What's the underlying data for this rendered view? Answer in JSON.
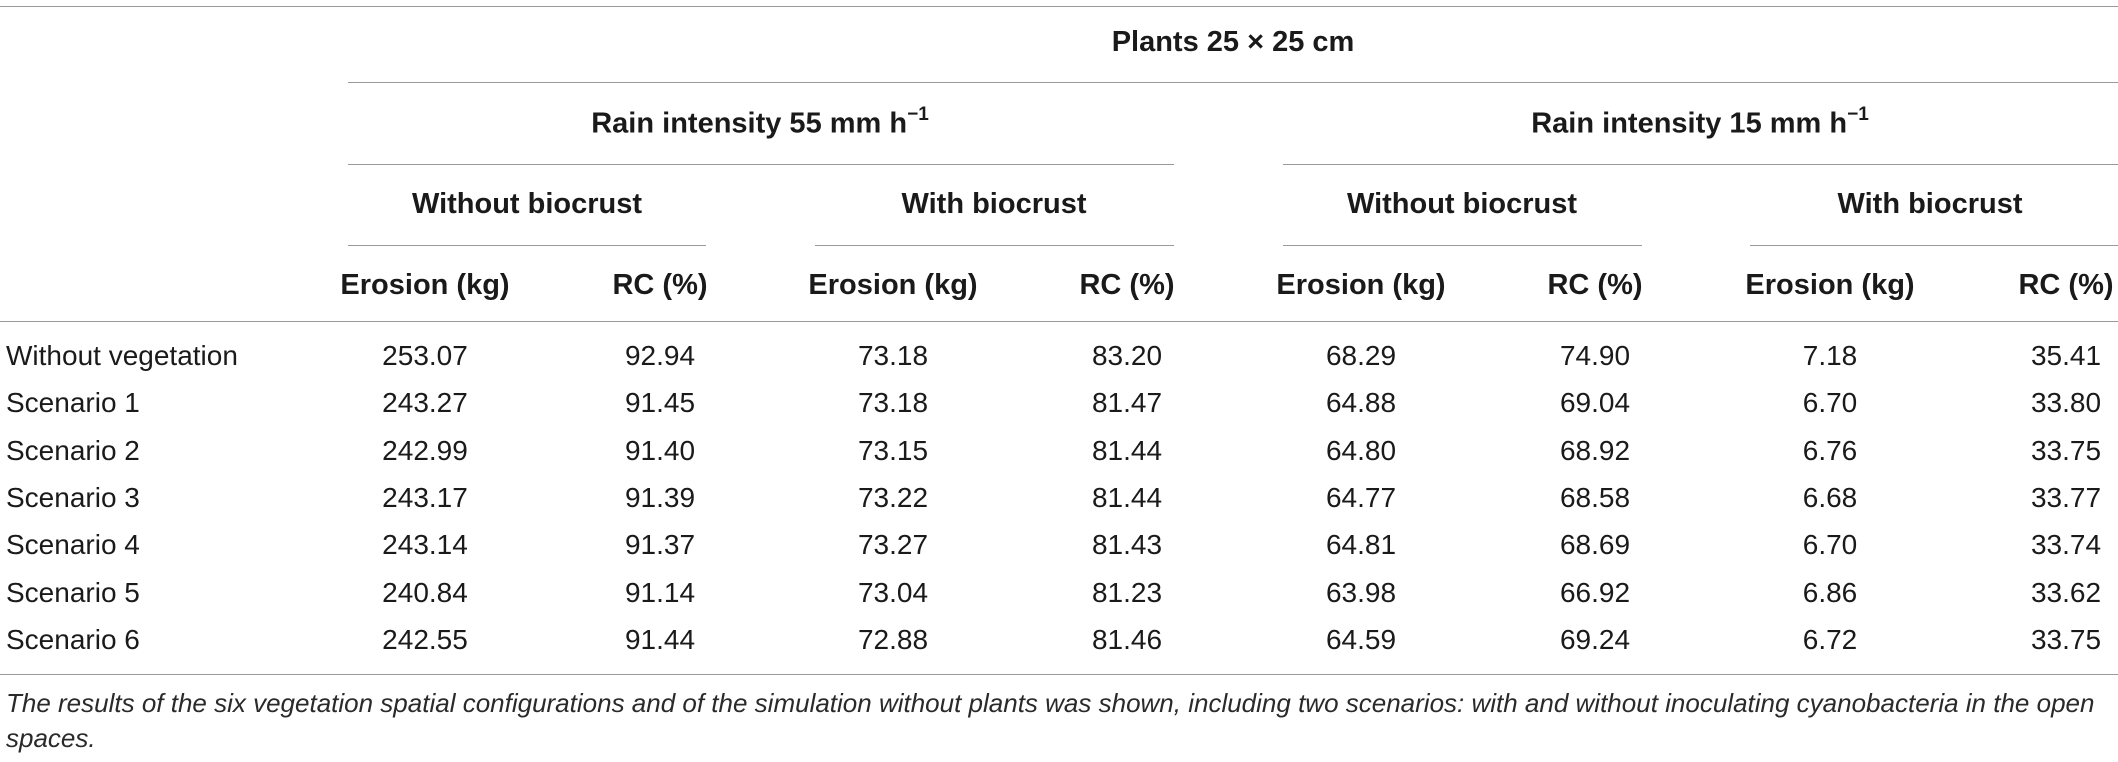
{
  "table": {
    "top_header": "Plants 25 × 25 cm",
    "rain_groups": [
      {
        "label": "Rain intensity 55 mm h",
        "superscript": "−1"
      },
      {
        "label": "Rain intensity 15 mm h",
        "superscript": "−1"
      }
    ],
    "biocrust_groups": [
      "Without biocrust",
      "With biocrust",
      "Without biocrust",
      "With biocrust"
    ],
    "column_headers": [
      "Erosion (kg)",
      "RC (%)",
      "Erosion (kg)",
      "RC (%)",
      "Erosion (kg)",
      "RC (%)",
      "Erosion (kg)",
      "RC (%)"
    ],
    "rows": [
      {
        "label": "Without vegetation",
        "values": [
          "253.07",
          "92.94",
          "73.18",
          "83.20",
          "68.29",
          "74.90",
          "7.18",
          "35.41"
        ]
      },
      {
        "label": "Scenario 1",
        "values": [
          "243.27",
          "91.45",
          "73.18",
          "81.47",
          "64.88",
          "69.04",
          "6.70",
          "33.80"
        ]
      },
      {
        "label": "Scenario 2",
        "values": [
          "242.99",
          "91.40",
          "73.15",
          "81.44",
          "64.80",
          "68.92",
          "6.76",
          "33.75"
        ]
      },
      {
        "label": "Scenario 3",
        "values": [
          "243.17",
          "91.39",
          "73.22",
          "81.44",
          "64.77",
          "68.58",
          "6.68",
          "33.77"
        ]
      },
      {
        "label": "Scenario 4",
        "values": [
          "243.14",
          "91.37",
          "73.27",
          "81.43",
          "64.81",
          "68.69",
          "6.70",
          "33.74"
        ]
      },
      {
        "label": "Scenario 5",
        "values": [
          "240.84",
          "91.14",
          "73.04",
          "81.23",
          "63.98",
          "66.92",
          "6.86",
          "33.62"
        ]
      },
      {
        "label": "Scenario 6",
        "values": [
          "242.55",
          "91.44",
          "72.88",
          "81.46",
          "64.59",
          "69.24",
          "6.72",
          "33.75"
        ]
      }
    ]
  },
  "caption": "The results of the six vegetation spatial configurations and of the simulation without plants was shown, including two scenarios: with and without inoculating cyanobacteria in the open spaces."
}
